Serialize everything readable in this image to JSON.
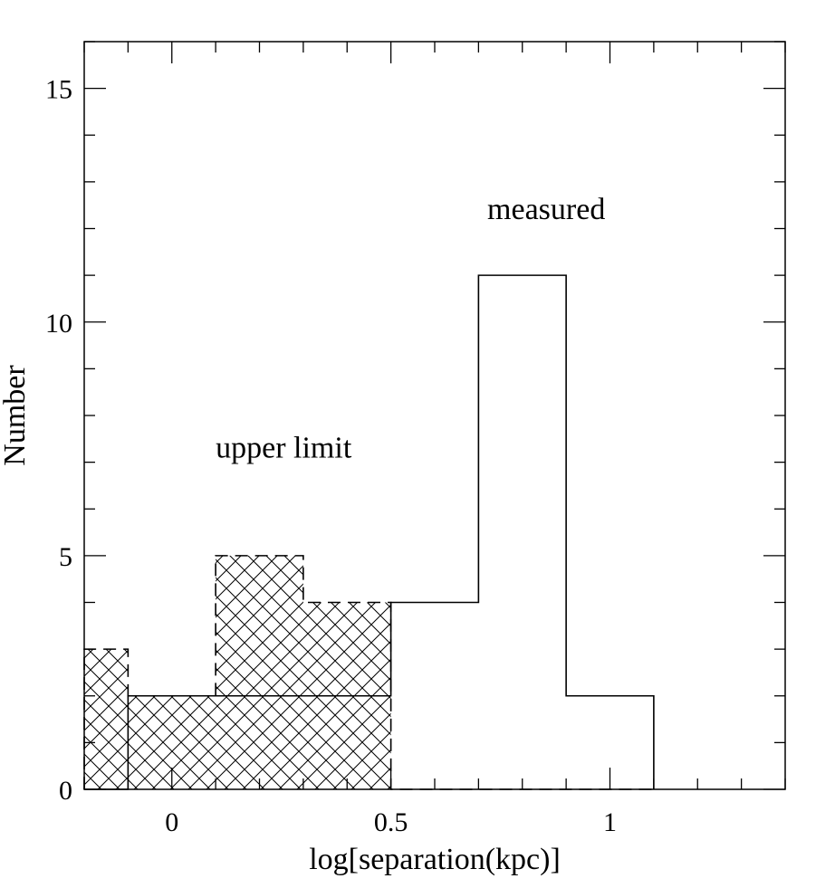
{
  "chart_data": {
    "type": "bar",
    "title": "",
    "xlabel": "log[separation(kpc)]",
    "ylabel": "Number",
    "xlim": [
      -0.2,
      1.4
    ],
    "ylim": [
      0,
      16
    ],
    "x_ticks": [
      {
        "value": 0,
        "label": "0"
      },
      {
        "value": 0.5,
        "label": "0.5"
      },
      {
        "value": 1,
        "label": "1"
      }
    ],
    "y_ticks": [
      {
        "value": 0,
        "label": "0"
      },
      {
        "value": 5,
        "label": "5"
      },
      {
        "value": 10,
        "label": "10"
      },
      {
        "value": 15,
        "label": "15"
      }
    ],
    "bin_edges": [
      -0.2,
      -0.1,
      0.1,
      0.3,
      0.5,
      0.7,
      0.9,
      1.1
    ],
    "series": [
      {
        "name": "measured",
        "style": "solid outline",
        "values": [
          0,
          2,
          2,
          2,
          4,
          11,
          2
        ]
      },
      {
        "name": "upper limit",
        "style": "dashed outline, cross-hatched",
        "values": [
          3,
          2,
          5,
          4,
          0,
          0,
          0
        ]
      }
    ],
    "annotations": [
      {
        "text": "measured",
        "x": 0.72,
        "y": 12.2
      },
      {
        "text": "upper limit",
        "x": 0.1,
        "y": 7.1
      }
    ],
    "grid": false
  }
}
